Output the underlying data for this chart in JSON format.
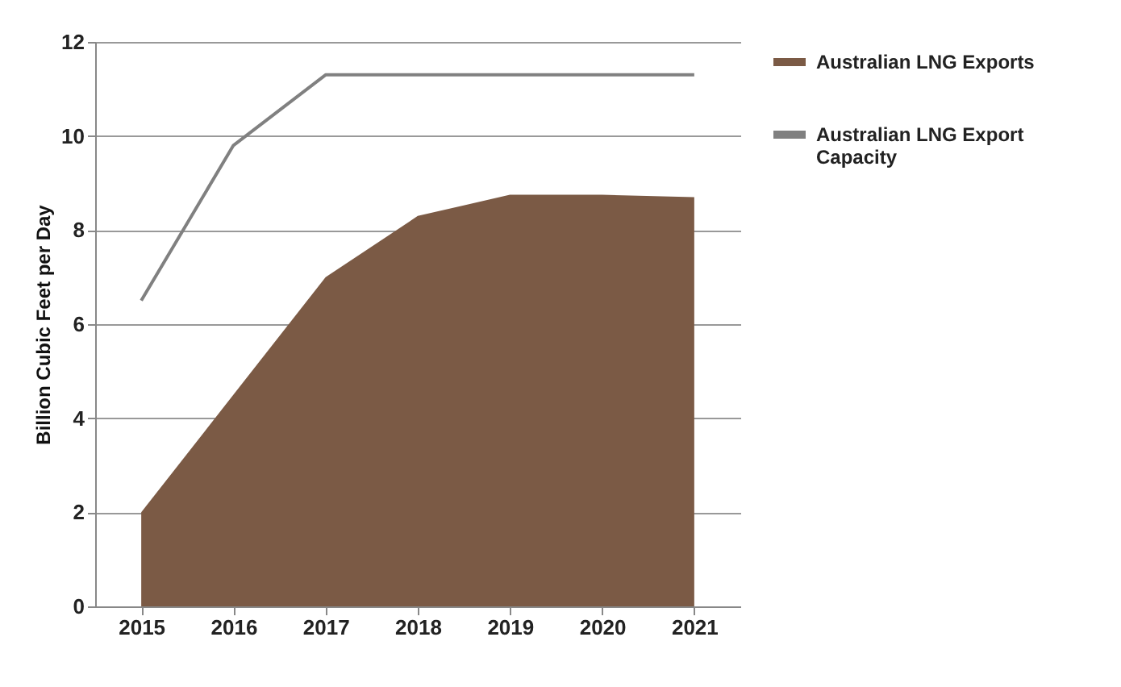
{
  "chart_data": {
    "type": "area",
    "ylabel": "Billion Cubic Feet per Day",
    "categories": [
      "2015",
      "2016",
      "2017",
      "2018",
      "2019",
      "2020",
      "2021"
    ],
    "series": [
      {
        "name": "Australian LNG Exports",
        "color": "#7b5a45",
        "values": [
          2.0,
          4.5,
          7.0,
          8.3,
          8.75,
          8.75,
          8.7
        ]
      },
      {
        "name": "Australian LNG Export Capacity",
        "type": "line",
        "color": "#808080",
        "values": [
          6.5,
          9.8,
          11.3,
          11.3,
          11.3,
          11.3,
          11.3
        ]
      }
    ],
    "ylim": [
      0,
      12
    ],
    "yticks": [
      0,
      2,
      4,
      6,
      8,
      10,
      12
    ],
    "grid": "y",
    "legend": "right"
  }
}
